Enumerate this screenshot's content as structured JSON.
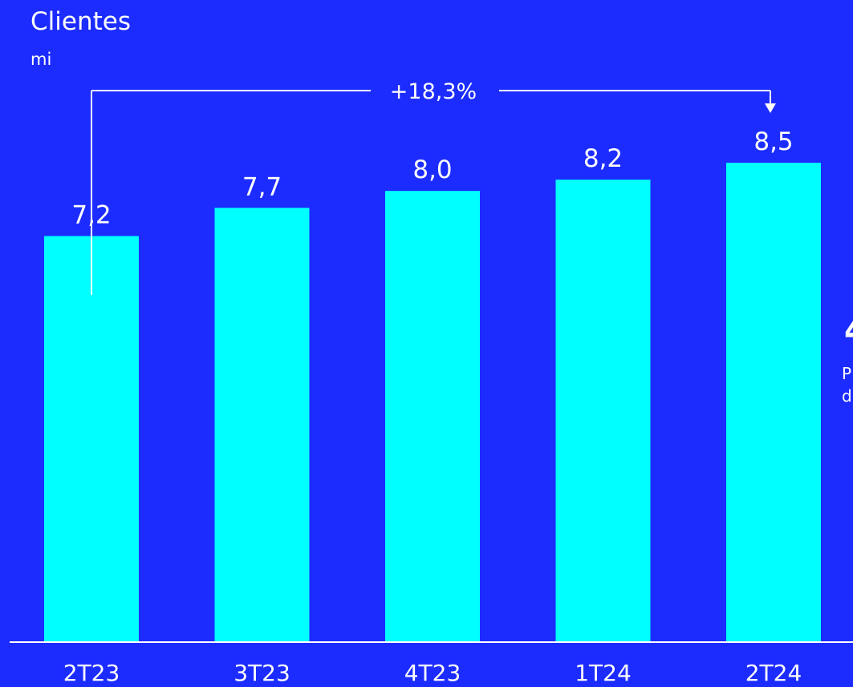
{
  "chart_data": {
    "type": "bar",
    "title": "Clientes",
    "subtitle": "mi",
    "categories": [
      "2T23",
      "3T23",
      "4T23",
      "1T24",
      "2T24"
    ],
    "values": [
      7.2,
      7.7,
      8.0,
      8.2,
      8.5
    ],
    "value_labels": [
      "7,2",
      "7,7",
      "8,0",
      "8,2",
      "8,5"
    ],
    "ylim": [
      0,
      8.5
    ],
    "grid": false,
    "annotation": {
      "text": "+18,3%",
      "from_category": "2T23",
      "to_category": "2T24"
    },
    "colors": {
      "background": "#1c2cff",
      "bar": "#00ffff",
      "text": "#ffffff"
    }
  },
  "cropped_text": [
    "4",
    "P",
    "d"
  ]
}
